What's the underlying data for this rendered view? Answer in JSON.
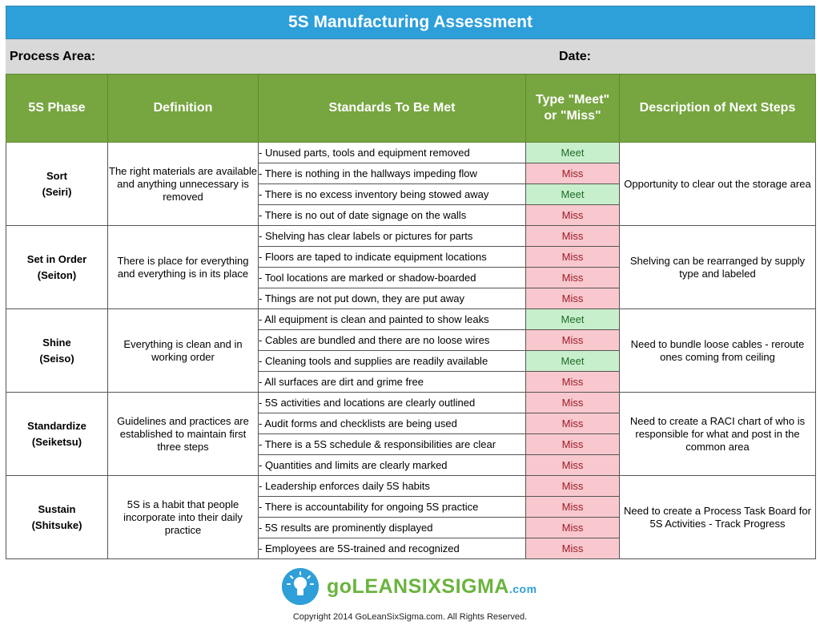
{
  "title": "5S Manufacturing Assessment",
  "meta": {
    "process_area_label": "Process Area:",
    "date_label": "Date:"
  },
  "headers": {
    "phase": "5S Phase",
    "definition": "Definition",
    "standards": "Standards To Be Met",
    "type_line1": "Type \"Meet\"",
    "type_line2": "or \"Miss\"",
    "next_steps": "Description of Next Steps"
  },
  "phases": [
    {
      "name": "Sort",
      "japanese": "(Seiri)",
      "definition": "The right materials are available and anything unnecessary is removed",
      "next_steps": "Opportunity to clear out the storage area",
      "standards": [
        {
          "text": "- Unused parts, tools and equipment removed",
          "type": "Meet"
        },
        {
          "text": "- There is nothing in the hallways impeding flow",
          "type": "Miss"
        },
        {
          "text": "- There is no excess inventory being stowed away",
          "type": "Meet"
        },
        {
          "text": "- There is no out of date signage on the walls",
          "type": "Miss"
        }
      ]
    },
    {
      "name": "Set in Order",
      "japanese": "(Seiton)",
      "definition": "There is place for everything and everything is in its place",
      "next_steps": "Shelving can be rearranged by supply type and labeled",
      "standards": [
        {
          "text": "- Shelving has clear labels or pictures for parts",
          "type": "Miss"
        },
        {
          "text": "- Floors are taped to indicate equipment locations",
          "type": "Miss"
        },
        {
          "text": "- Tool locations are marked or shadow-boarded",
          "type": "Miss"
        },
        {
          "text": "- Things are not put down, they are put away",
          "type": "Miss"
        }
      ]
    },
    {
      "name": "Shine",
      "japanese": "(Seiso)",
      "definition": "Everything is clean and in working order",
      "next_steps": "Need to bundle loose cables - reroute ones coming from ceiling",
      "standards": [
        {
          "text": "- All equipment is clean and painted to show leaks",
          "type": "Meet"
        },
        {
          "text": "- Cables are bundled and there are no loose wires",
          "type": "Miss"
        },
        {
          "text": "- Cleaning tools and supplies are readily available",
          "type": "Meet"
        },
        {
          "text": "- All surfaces are dirt and grime free",
          "type": "Miss"
        }
      ]
    },
    {
      "name": "Standardize",
      "japanese": "(Seiketsu)",
      "definition": "Guidelines and practices are established to maintain first three steps",
      "next_steps": "Need to create a RACI chart of who is responsible for what and post in the common area",
      "standards": [
        {
          "text": "- 5S activities and locations are clearly outlined",
          "type": "Miss"
        },
        {
          "text": "- Audit forms and checklists are being used",
          "type": "Miss"
        },
        {
          "text": "- There is a 5S schedule & responsibilities are clear",
          "type": "Miss"
        },
        {
          "text": "- Quantities and limits are clearly marked",
          "type": "Miss"
        }
      ]
    },
    {
      "name": "Sustain",
      "japanese": "(Shitsuke)",
      "definition": "5S is a habit that people incorporate into their daily practice",
      "next_steps": "Need to create a Process Task Board for 5S Activities - Track Progress",
      "standards": [
        {
          "text": "- Leadership enforces daily 5S habits",
          "type": "Miss"
        },
        {
          "text": "- There is accountability for ongoing 5S practice",
          "type": "Miss"
        },
        {
          "text": "- 5S results are prominently displayed",
          "type": "Miss"
        },
        {
          "text": "- Employees are 5S-trained and recognized",
          "type": "Miss"
        }
      ]
    }
  ],
  "footer": {
    "logo_icon": "lightbulb-icon",
    "brand_go": "go",
    "brand_main": "LEANSIXSIGMA",
    "brand_com": ".com",
    "copyright": "Copyright 2014 GoLeanSixSigma.com. All Rights Reserved."
  },
  "colors": {
    "title_bar": "#2d9fd9",
    "header_green": "#77a540",
    "meet_fill": "#c8efcc",
    "miss_fill": "#f8c8ce"
  }
}
